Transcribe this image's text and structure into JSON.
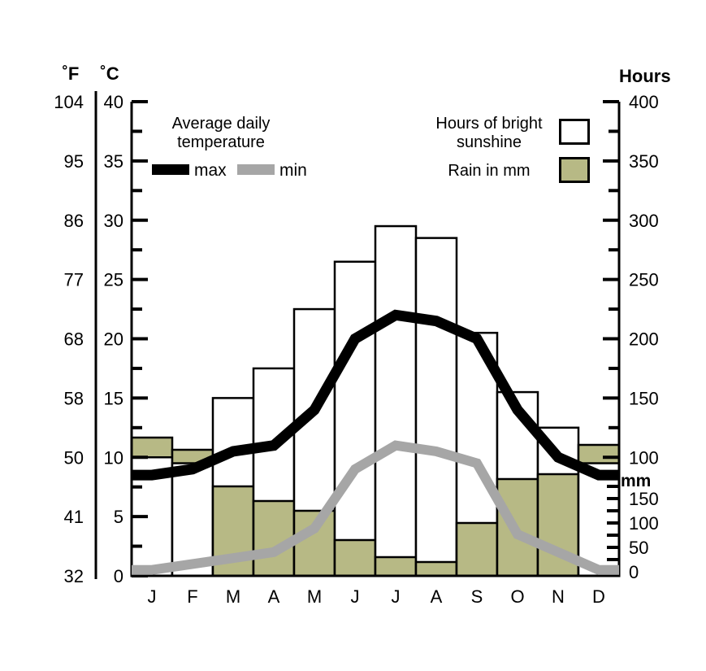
{
  "axis_headers": {
    "fahrenheit": "˚F",
    "celsius": "˚C",
    "hours": "Hours",
    "mm": "mm"
  },
  "legend": {
    "temperature": {
      "title_line1": "Average daily",
      "title_line2": "temperature",
      "max_label": "max",
      "min_label": "min"
    },
    "bars": {
      "sunshine_line1": "Hours of bright",
      "sunshine_line2": "sunshine",
      "rain_label": "Rain in mm"
    }
  },
  "colors": {
    "background": "#ffffff",
    "rain_fill": "#b7b985",
    "sunshine_fill": "#ffffff",
    "bar_outline": "#000000",
    "max_line": "#000000",
    "min_line": "#a6a6a6"
  },
  "chart_data": {
    "type": "combo (bar + line climate graph)",
    "categories": [
      "J",
      "F",
      "M",
      "A",
      "M",
      "J",
      "J",
      "A",
      "S",
      "O",
      "N",
      "D"
    ],
    "series": [
      {
        "name": "Hours of bright sunshine",
        "type": "bar",
        "unit": "hours",
        "axis": "hours",
        "values": [
          100,
          95,
          150,
          175,
          225,
          265,
          295,
          285,
          205,
          155,
          125,
          95
        ]
      },
      {
        "name": "Rain",
        "type": "bar",
        "unit": "mm",
        "axis": "mm",
        "values": [
          275,
          250,
          175,
          145,
          125,
          65,
          30,
          20,
          100,
          190,
          200,
          260
        ]
      },
      {
        "name": "Average daily temperature max",
        "type": "line",
        "unit": "°C",
        "axis": "celsius",
        "values": [
          8.5,
          9,
          10.5,
          11,
          14,
          20,
          22,
          21.5,
          20,
          14,
          10,
          8.5
        ]
      },
      {
        "name": "Average daily temperature min",
        "type": "line",
        "unit": "°C",
        "axis": "celsius",
        "values": [
          0.5,
          1,
          1.5,
          2,
          4,
          9,
          11,
          10.5,
          9.5,
          3.5,
          2,
          0.5
        ]
      }
    ],
    "axes": {
      "celsius": {
        "title": "˚C",
        "min": 0,
        "max": 40,
        "tick_step": 2.5,
        "label_step": 5,
        "labels": [
          40,
          35,
          30,
          25,
          20,
          15,
          10,
          5,
          0
        ]
      },
      "fahrenheit": {
        "title": "˚F",
        "labels": [
          104,
          95,
          86,
          77,
          68,
          58,
          50,
          41,
          32
        ]
      },
      "hours": {
        "title": "Hours",
        "min": 0,
        "max": 400,
        "tick_step": 25,
        "label_step": 50,
        "labels": [
          400,
          350,
          300,
          250,
          200,
          150,
          100
        ]
      },
      "mm": {
        "title": "mm",
        "min": 0,
        "tick_step": 25,
        "ticks_max": 200,
        "labels": [
          150,
          100,
          50,
          0
        ]
      }
    },
    "grid": false,
    "legend_position": "top"
  }
}
